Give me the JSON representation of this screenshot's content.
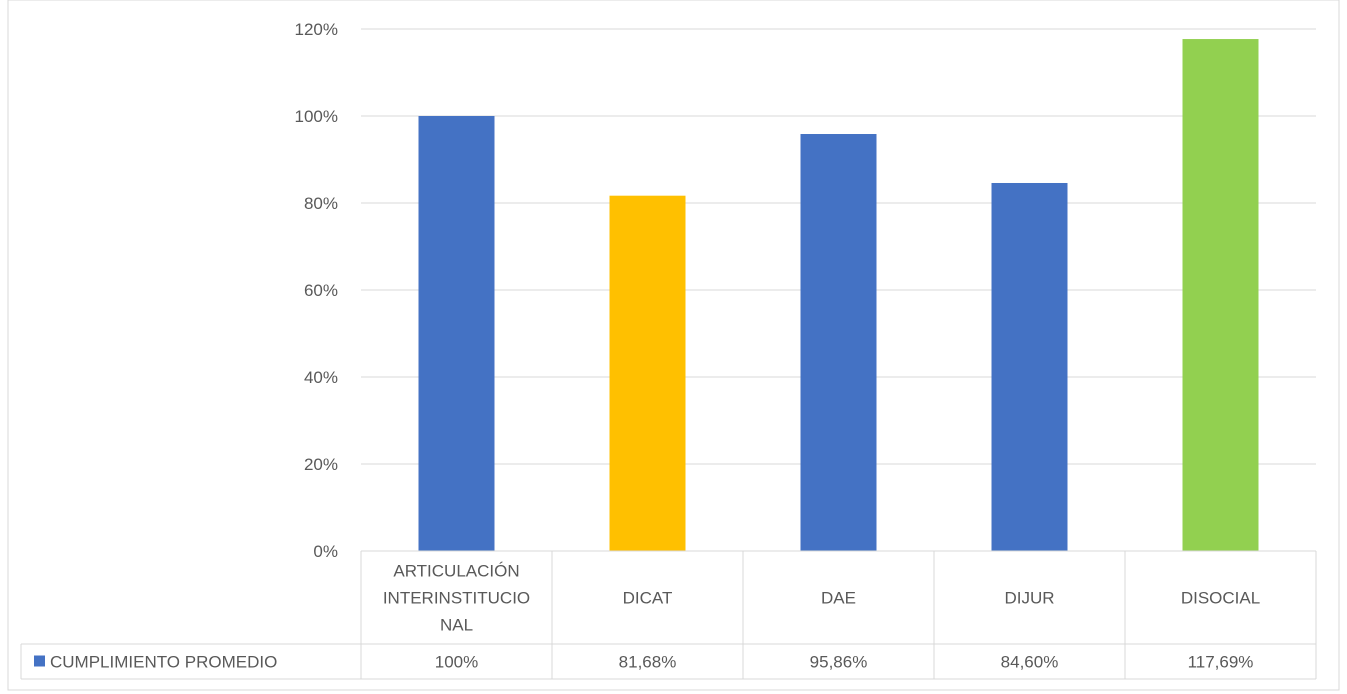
{
  "chart_data": {
    "type": "bar",
    "title": "",
    "xlabel": "",
    "ylabel": "",
    "ylim": [
      0,
      1.2
    ],
    "yticks": [
      0,
      0.2,
      0.4,
      0.6,
      0.8,
      1.0,
      1.2
    ],
    "ytick_labels": [
      "0%",
      "20%",
      "40%",
      "60%",
      "80%",
      "100%",
      "120%"
    ],
    "grid": true,
    "legend_position": "bottom-left (data table)",
    "categories": [
      [
        "ARTICULACIÓN",
        "INTERINSTITUCIO",
        "NAL"
      ],
      [
        "DICAT"
      ],
      [
        "DAE"
      ],
      [
        "DIJUR"
      ],
      [
        "DISOCIAL"
      ]
    ],
    "series": [
      {
        "name": "CUMPLIMIENTO PROMEDIO",
        "values": [
          1.0,
          0.8168,
          0.9586,
          0.846,
          1.1769
        ],
        "value_labels": [
          "100%",
          "81,68%",
          "95,86%",
          "84,60%",
          "117,69%"
        ],
        "colors": [
          "#4472C4",
          "#FFC000",
          "#4472C4",
          "#4472C4",
          "#92D050"
        ]
      }
    ],
    "legend_color": "#4472C4"
  }
}
